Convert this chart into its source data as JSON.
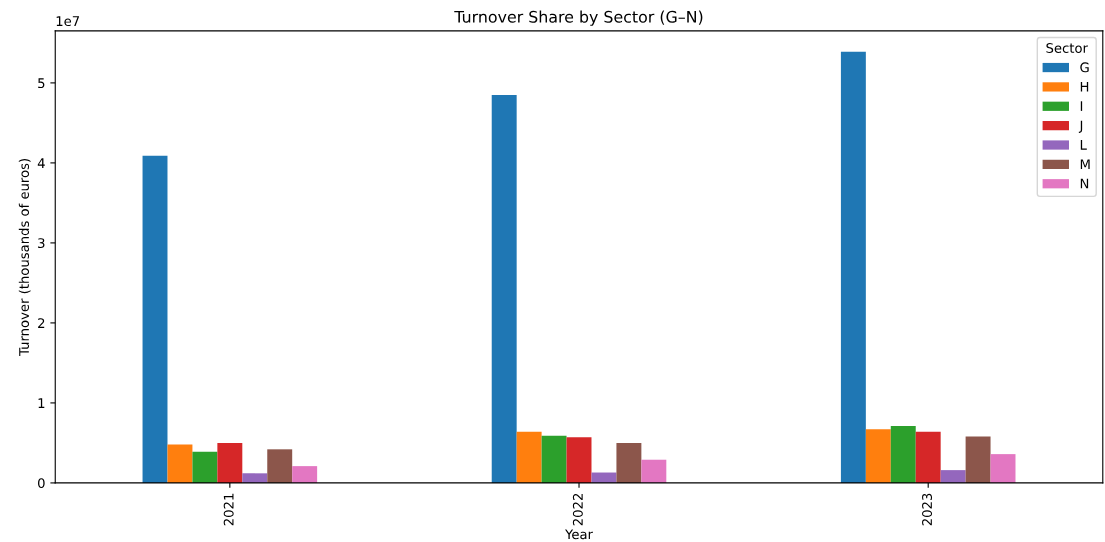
{
  "chart_data": {
    "type": "bar",
    "title": "Turnover Share by Sector (G–N)",
    "xlabel": "Year",
    "ylabel": "Turnover (thousands of euros)",
    "legend_title": "Sector",
    "categories": [
      "2021",
      "2022",
      "2023"
    ],
    "series": [
      {
        "name": "G",
        "color": "#1f77b4",
        "values": [
          4.09,
          4.85,
          5.39
        ]
      },
      {
        "name": "H",
        "color": "#ff7f0e",
        "values": [
          0.48,
          0.64,
          0.67
        ]
      },
      {
        "name": "I",
        "color": "#2ca02c",
        "values": [
          0.39,
          0.59,
          0.71
        ]
      },
      {
        "name": "J",
        "color": "#d62728",
        "values": [
          0.5,
          0.57,
          0.64
        ]
      },
      {
        "name": "L",
        "color": "#9467bd",
        "values": [
          0.12,
          0.13,
          0.16
        ]
      },
      {
        "name": "M",
        "color": "#8c564b",
        "values": [
          0.42,
          0.5,
          0.58
        ]
      },
      {
        "name": "N",
        "color": "#e377c2",
        "values": [
          0.21,
          0.29,
          0.36
        ]
      }
    ],
    "ylim": [
      0,
      5.65
    ],
    "yticks": [
      0,
      1,
      2,
      3,
      4,
      5
    ],
    "annotations": [
      "1e7"
    ],
    "legend": "top right",
    "grid": false
  }
}
